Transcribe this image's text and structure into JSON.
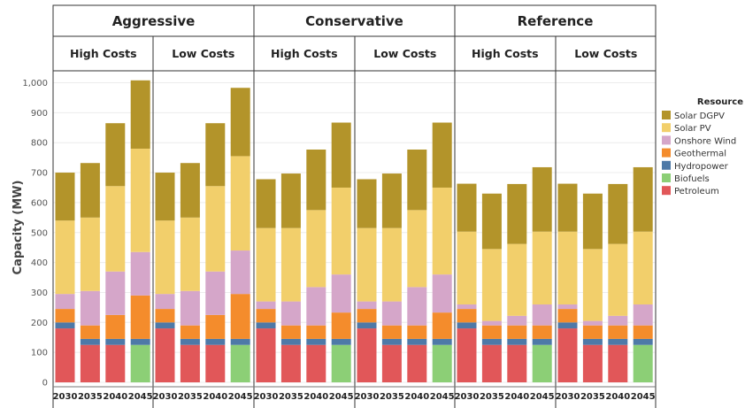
{
  "chart_data": {
    "type": "bar",
    "stacked": true,
    "ylabel": "Capacity (MW)",
    "ylim": [
      0,
      1050
    ],
    "yticks": [
      0,
      100,
      200,
      300,
      400,
      500,
      600,
      700,
      800,
      900,
      1000
    ],
    "ytick_labels": [
      "0",
      "100",
      "200",
      "300",
      "400",
      "500",
      "600",
      "700",
      "800",
      "900",
      "1,000"
    ],
    "grid": true,
    "legend": {
      "title": "Resource",
      "position": "right",
      "items": [
        {
          "name": "Solar DGPV",
          "color": "#b3942a"
        },
        {
          "name": "Solar PV",
          "color": "#f2cf6b"
        },
        {
          "name": "Onshore Wind",
          "color": "#d5a6c9"
        },
        {
          "name": "Geothermal",
          "color": "#f48c2c"
        },
        {
          "name": "Hydropower",
          "color": "#4e79a7"
        },
        {
          "name": "Biofuels",
          "color": "#8ccf76"
        },
        {
          "name": "Petroleum",
          "color": "#e15759"
        }
      ]
    },
    "series_order_bottom_up": [
      "Petroleum",
      "Biofuels",
      "Hydropower",
      "Geothermal",
      "Onshore Wind",
      "Solar PV",
      "Solar DGPV"
    ],
    "groups": [
      {
        "name": "Aggressive",
        "panels": [
          {
            "name": "High Costs",
            "bars": [
              {
                "x": "2030",
                "Petroleum": 180,
                "Biofuels": 0,
                "Hydropower": 20,
                "Geothermal": 45,
                "Onshore Wind": 50,
                "Solar PV": 245,
                "Solar DGPV": 160
              },
              {
                "x": "2035",
                "Petroleum": 125,
                "Biofuels": 0,
                "Hydropower": 20,
                "Geothermal": 45,
                "Onshore Wind": 115,
                "Solar PV": 245,
                "Solar DGPV": 182
              },
              {
                "x": "2040",
                "Petroleum": 125,
                "Biofuels": 0,
                "Hydropower": 20,
                "Geothermal": 80,
                "Onshore Wind": 145,
                "Solar PV": 285,
                "Solar DGPV": 210
              },
              {
                "x": "2045",
                "Petroleum": 0,
                "Biofuels": 125,
                "Hydropower": 20,
                "Geothermal": 145,
                "Onshore Wind": 145,
                "Solar PV": 345,
                "Solar DGPV": 228
              }
            ]
          },
          {
            "name": "Low Costs",
            "bars": [
              {
                "x": "2030",
                "Petroleum": 180,
                "Biofuels": 0,
                "Hydropower": 20,
                "Geothermal": 45,
                "Onshore Wind": 50,
                "Solar PV": 245,
                "Solar DGPV": 160
              },
              {
                "x": "2035",
                "Petroleum": 125,
                "Biofuels": 0,
                "Hydropower": 20,
                "Geothermal": 45,
                "Onshore Wind": 115,
                "Solar PV": 245,
                "Solar DGPV": 182
              },
              {
                "x": "2040",
                "Petroleum": 125,
                "Biofuels": 0,
                "Hydropower": 20,
                "Geothermal": 80,
                "Onshore Wind": 145,
                "Solar PV": 285,
                "Solar DGPV": 210
              },
              {
                "x": "2045",
                "Petroleum": 0,
                "Biofuels": 125,
                "Hydropower": 20,
                "Geothermal": 150,
                "Onshore Wind": 145,
                "Solar PV": 315,
                "Solar DGPV": 228
              }
            ]
          }
        ]
      },
      {
        "name": "Conservative",
        "panels": [
          {
            "name": "High Costs",
            "bars": [
              {
                "x": "2030",
                "Petroleum": 180,
                "Biofuels": 0,
                "Hydropower": 20,
                "Geothermal": 45,
                "Onshore Wind": 25,
                "Solar PV": 245,
                "Solar DGPV": 163
              },
              {
                "x": "2035",
                "Petroleum": 125,
                "Biofuels": 0,
                "Hydropower": 20,
                "Geothermal": 45,
                "Onshore Wind": 80,
                "Solar PV": 245,
                "Solar DGPV": 182
              },
              {
                "x": "2040",
                "Petroleum": 125,
                "Biofuels": 0,
                "Hydropower": 20,
                "Geothermal": 45,
                "Onshore Wind": 128,
                "Solar PV": 257,
                "Solar DGPV": 202
              },
              {
                "x": "2045",
                "Petroleum": 0,
                "Biofuels": 125,
                "Hydropower": 20,
                "Geothermal": 88,
                "Onshore Wind": 127,
                "Solar PV": 290,
                "Solar DGPV": 217
              }
            ]
          },
          {
            "name": "Low Costs",
            "bars": [
              {
                "x": "2030",
                "Petroleum": 180,
                "Biofuels": 0,
                "Hydropower": 20,
                "Geothermal": 45,
                "Onshore Wind": 25,
                "Solar PV": 245,
                "Solar DGPV": 163
              },
              {
                "x": "2035",
                "Petroleum": 125,
                "Biofuels": 0,
                "Hydropower": 20,
                "Geothermal": 45,
                "Onshore Wind": 80,
                "Solar PV": 245,
                "Solar DGPV": 182
              },
              {
                "x": "2040",
                "Petroleum": 125,
                "Biofuels": 0,
                "Hydropower": 20,
                "Geothermal": 45,
                "Onshore Wind": 128,
                "Solar PV": 257,
                "Solar DGPV": 202
              },
              {
                "x": "2045",
                "Petroleum": 0,
                "Biofuels": 125,
                "Hydropower": 20,
                "Geothermal": 88,
                "Onshore Wind": 127,
                "Solar PV": 290,
                "Solar DGPV": 217
              }
            ]
          }
        ]
      },
      {
        "name": "Reference",
        "panels": [
          {
            "name": "High Costs",
            "bars": [
              {
                "x": "2030",
                "Petroleum": 180,
                "Biofuels": 0,
                "Hydropower": 20,
                "Geothermal": 45,
                "Onshore Wind": 15,
                "Solar PV": 243,
                "Solar DGPV": 160
              },
              {
                "x": "2035",
                "Petroleum": 125,
                "Biofuels": 0,
                "Hydropower": 20,
                "Geothermal": 45,
                "Onshore Wind": 15,
                "Solar PV": 240,
                "Solar DGPV": 185
              },
              {
                "x": "2040",
                "Petroleum": 125,
                "Biofuels": 0,
                "Hydropower": 20,
                "Geothermal": 45,
                "Onshore Wind": 32,
                "Solar PV": 240,
                "Solar DGPV": 200
              },
              {
                "x": "2045",
                "Petroleum": 0,
                "Biofuels": 125,
                "Hydropower": 20,
                "Geothermal": 45,
                "Onshore Wind": 70,
                "Solar PV": 243,
                "Solar DGPV": 215
              }
            ]
          },
          {
            "name": "Low Costs",
            "bars": [
              {
                "x": "2030",
                "Petroleum": 180,
                "Biofuels": 0,
                "Hydropower": 20,
                "Geothermal": 45,
                "Onshore Wind": 15,
                "Solar PV": 243,
                "Solar DGPV": 160
              },
              {
                "x": "2035",
                "Petroleum": 125,
                "Biofuels": 0,
                "Hydropower": 20,
                "Geothermal": 45,
                "Onshore Wind": 15,
                "Solar PV": 240,
                "Solar DGPV": 185
              },
              {
                "x": "2040",
                "Petroleum": 125,
                "Biofuels": 0,
                "Hydropower": 20,
                "Geothermal": 45,
                "Onshore Wind": 32,
                "Solar PV": 240,
                "Solar DGPV": 200
              },
              {
                "x": "2045",
                "Petroleum": 0,
                "Biofuels": 125,
                "Hydropower": 20,
                "Geothermal": 45,
                "Onshore Wind": 70,
                "Solar PV": 243,
                "Solar DGPV": 215
              }
            ]
          }
        ]
      }
    ]
  }
}
